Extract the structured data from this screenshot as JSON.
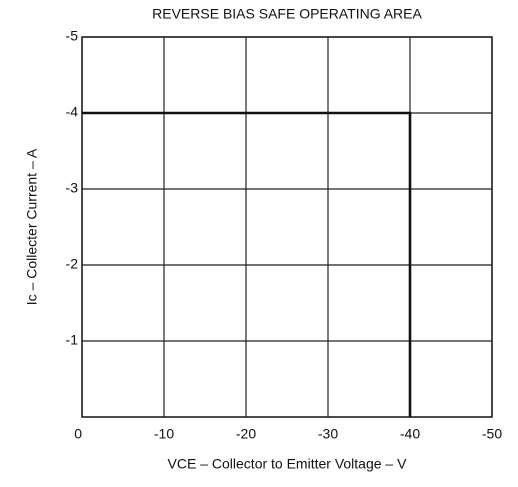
{
  "chart_data": {
    "type": "line",
    "title": "REVERSE BIAS SAFE OPERATING AREA",
    "x_label": "VCE – Collector to Emitter Voltage – V",
    "y_label": "Ic – Collecter Current – A",
    "x": [
      0,
      -40,
      -40
    ],
    "series": [
      {
        "color": "#111111",
        "values": [
          -4,
          -4,
          0
        ]
      }
    ],
    "xlim": [
      0,
      -50
    ],
    "xticks": [
      0,
      -10,
      -20,
      -30,
      -40,
      -50
    ],
    "ylim": [
      0,
      -5
    ],
    "yticks": [
      -5,
      -4,
      -3,
      -2,
      -1
    ],
    "grid": true
  }
}
